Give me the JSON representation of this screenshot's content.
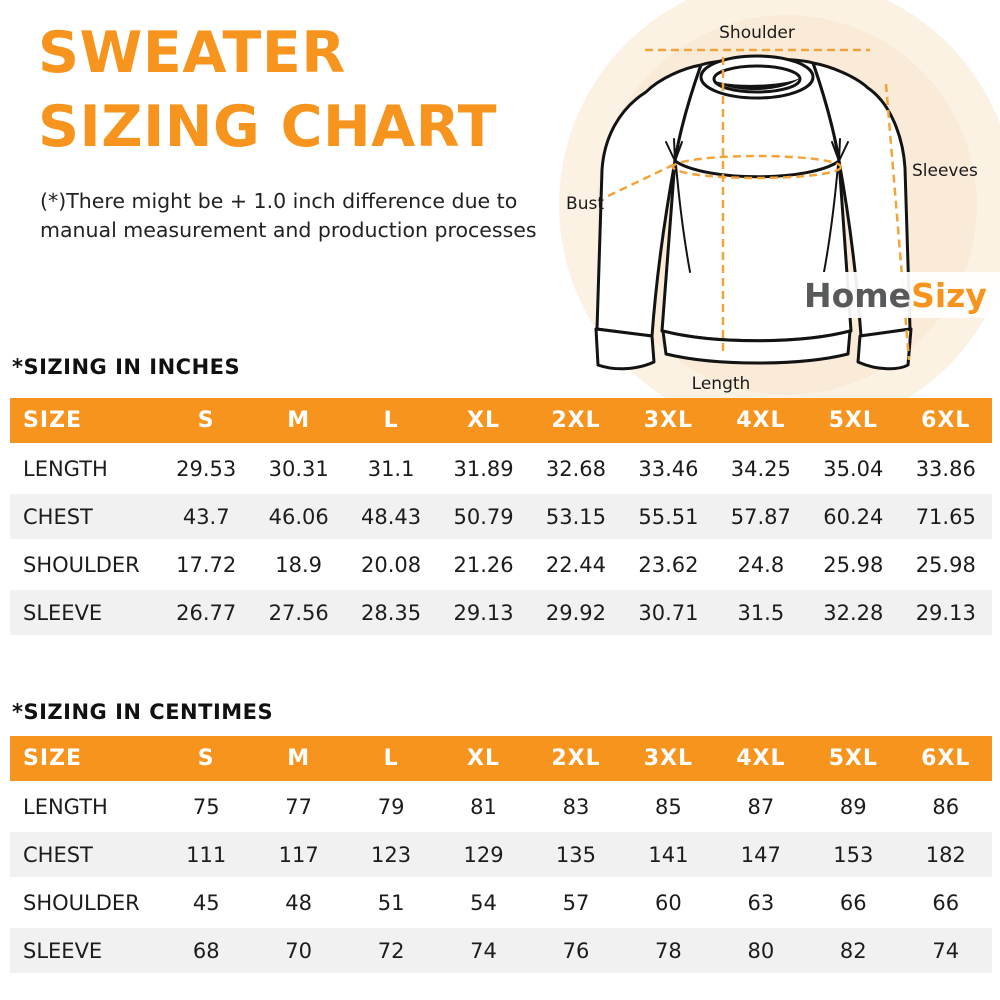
{
  "title": "SWEATER\nSIZING CHART",
  "disclaimer": "(*)There might be + 1.0 inch difference due to\nmanual measurement and production processes",
  "brand": {
    "part1": "Home",
    "part2": "Sizy"
  },
  "diagram": {
    "labels": {
      "shoulder": "Shoulder",
      "sleeves": "Sleeves",
      "bust": "Bust",
      "length": "Length"
    }
  },
  "colors": {
    "accent_orange": "#F7941D",
    "dashed_orange": "#F2A43B",
    "brand_gray": "#58595B",
    "row_alt_gray": "#F1F1F2",
    "circle_outer": "#FCF2E4",
    "circle_inner": "#F9EBD8"
  },
  "tables": [
    {
      "heading": "*SIZING IN INCHES",
      "columns": [
        "SIZE",
        "S",
        "M",
        "L",
        "XL",
        "2XL",
        "3XL",
        "4XL",
        "5XL",
        "6XL"
      ],
      "rows": [
        {
          "label": "LENGTH",
          "values": [
            "29.53",
            "30.31",
            "31.1",
            "31.89",
            "32.68",
            "33.46",
            "34.25",
            "35.04",
            "33.86"
          ]
        },
        {
          "label": "CHEST",
          "values": [
            "43.7",
            "46.06",
            "48.43",
            "50.79",
            "53.15",
            "55.51",
            "57.87",
            "60.24",
            "71.65"
          ]
        },
        {
          "label": "SHOULDER",
          "values": [
            "17.72",
            "18.9",
            "20.08",
            "21.26",
            "22.44",
            "23.62",
            "24.8",
            "25.98",
            "25.98"
          ]
        },
        {
          "label": "SLEEVE",
          "values": [
            "26.77",
            "27.56",
            "28.35",
            "29.13",
            "29.92",
            "30.71",
            "31.5",
            "32.28",
            "29.13"
          ]
        }
      ]
    },
    {
      "heading": "*SIZING IN CENTIMES",
      "columns": [
        "SIZE",
        "S",
        "M",
        "L",
        "XL",
        "2XL",
        "3XL",
        "4XL",
        "5XL",
        "6XL"
      ],
      "rows": [
        {
          "label": "LENGTH",
          "values": [
            "75",
            "77",
            "79",
            "81",
            "83",
            "85",
            "87",
            "89",
            "86"
          ]
        },
        {
          "label": "CHEST",
          "values": [
            "111",
            "117",
            "123",
            "129",
            "135",
            "141",
            "147",
            "153",
            "182"
          ]
        },
        {
          "label": "SHOULDER",
          "values": [
            "45",
            "48",
            "51",
            "54",
            "57",
            "60",
            "63",
            "66",
            "66"
          ]
        },
        {
          "label": "SLEEVE",
          "values": [
            "68",
            "70",
            "72",
            "74",
            "76",
            "78",
            "80",
            "82",
            "74"
          ]
        }
      ]
    }
  ],
  "chart_data": [
    {
      "type": "table",
      "title": "*SIZING IN INCHES",
      "columns": [
        "SIZE",
        "S",
        "M",
        "L",
        "XL",
        "2XL",
        "3XL",
        "4XL",
        "5XL",
        "6XL"
      ],
      "rows": [
        [
          "LENGTH",
          29.53,
          30.31,
          31.1,
          31.89,
          32.68,
          33.46,
          34.25,
          35.04,
          33.86
        ],
        [
          "CHEST",
          43.7,
          46.06,
          48.43,
          50.79,
          53.15,
          55.51,
          57.87,
          60.24,
          71.65
        ],
        [
          "SHOULDER",
          17.72,
          18.9,
          20.08,
          21.26,
          22.44,
          23.62,
          24.8,
          25.98,
          25.98
        ],
        [
          "SLEEVE",
          26.77,
          27.56,
          28.35,
          29.13,
          29.92,
          30.71,
          31.5,
          32.28,
          29.13
        ]
      ]
    },
    {
      "type": "table",
      "title": "*SIZING IN CENTIMES",
      "columns": [
        "SIZE",
        "S",
        "M",
        "L",
        "XL",
        "2XL",
        "3XL",
        "4XL",
        "5XL",
        "6XL"
      ],
      "rows": [
        [
          "LENGTH",
          75,
          77,
          79,
          81,
          83,
          85,
          87,
          89,
          86
        ],
        [
          "CHEST",
          111,
          117,
          123,
          129,
          135,
          141,
          147,
          153,
          182
        ],
        [
          "SHOULDER",
          45,
          48,
          51,
          54,
          57,
          60,
          63,
          66,
          66
        ],
        [
          "SLEEVE",
          68,
          70,
          72,
          74,
          76,
          78,
          80,
          82,
          74
        ]
      ]
    }
  ]
}
